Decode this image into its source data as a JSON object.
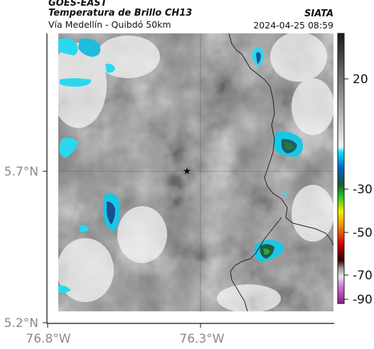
{
  "header": {
    "source": "GOES-EAST",
    "product": "Temperatura de Brillo CH13",
    "region": "Vía Medellín - Quibdó 50km",
    "organization": "SIATA",
    "timestamp": "2024-04-25 08:59"
  },
  "map": {
    "lat_ticks": [
      "5.7°N",
      "5.2°N"
    ],
    "lon_ticks": [
      "76.8°W",
      "76.3°W"
    ],
    "marker_icon": "star-icon"
  },
  "colorbar": {
    "ticks": [
      "20",
      "-30",
      "-50",
      "-70",
      "-90"
    ]
  }
}
